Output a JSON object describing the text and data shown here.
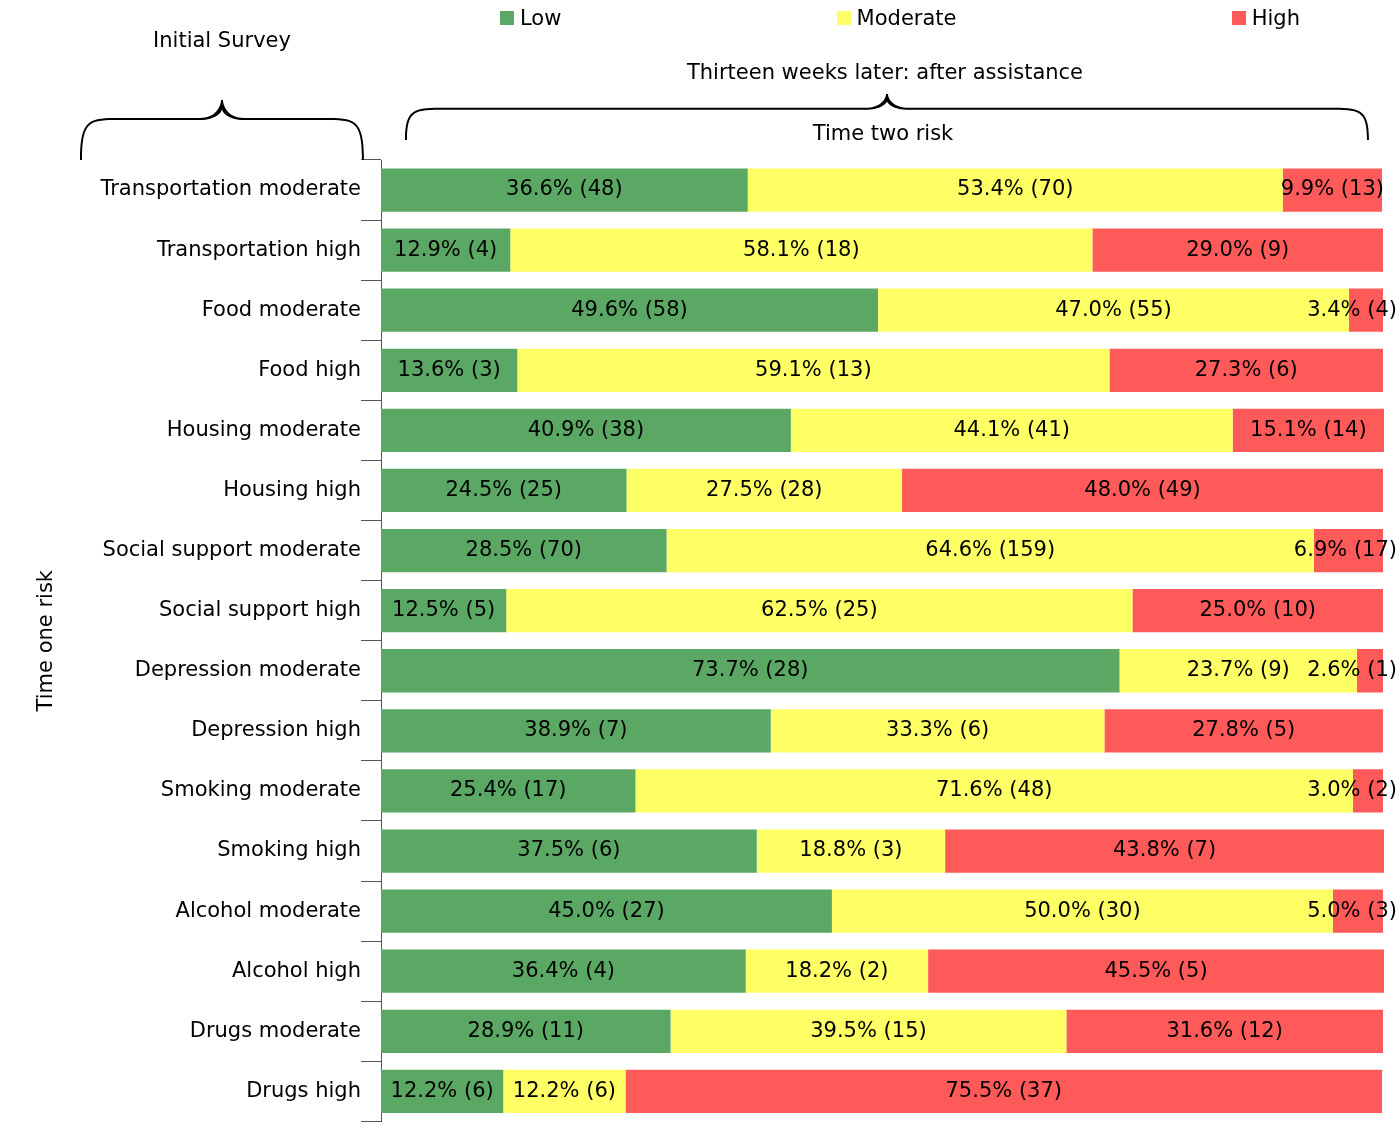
{
  "chart_data": {
    "type": "bar",
    "orientation": "horizontal",
    "stacked": true,
    "ylabel": "Time one risk",
    "annotations": [
      "Initial Survey",
      "Thirteen weeks later: after assistance",
      "Time two risk"
    ],
    "categories": [
      "Transportation moderate",
      "Transportation high",
      "Food moderate",
      "Food high",
      "Housing moderate",
      "Housing high",
      "Social support moderate",
      "Social support high",
      "Depression moderate",
      "Depression high",
      "Smoking moderate",
      "Smoking high",
      "Alcohol moderate",
      "Alcohol high",
      "Drugs moderate",
      "Drugs high"
    ],
    "series": [
      {
        "name": "Low",
        "color": "#5aa864",
        "values": [
          36.6,
          12.9,
          49.6,
          13.6,
          40.9,
          24.5,
          28.5,
          12.5,
          73.7,
          38.9,
          25.4,
          37.5,
          45.0,
          36.4,
          28.9,
          12.2
        ],
        "value_labels": [
          "36.6% (48)",
          "12.9% (4)",
          "49.6% (58)",
          "13.6% (3)",
          "40.9% (38)",
          "24.5% (25)",
          "28.5% (70)",
          "12.5% (5)",
          "73.7% (28)",
          "38.9% (7)",
          "25.4% (17)",
          "37.5% (6)",
          "45.0% (27)",
          "36.4% (4)",
          "28.9% (11)",
          "12.2% (6)"
        ]
      },
      {
        "name": "Moderate",
        "color": "#ffff66",
        "values": [
          53.4,
          58.1,
          47.0,
          59.1,
          44.1,
          27.5,
          64.6,
          62.5,
          23.7,
          33.3,
          71.6,
          18.8,
          50.0,
          18.2,
          39.5,
          12.2
        ],
        "value_labels": [
          "53.4% (70)",
          "58.1% (18)",
          "47.0% (55)",
          "59.1% (13)",
          "44.1% (41)",
          "27.5% (28)",
          "64.6% (159)",
          "62.5% (25)",
          "23.7% (9)",
          "33.3% (6)",
          "71.6% (48)",
          "18.8% (3)",
          "50.0% (30)",
          "18.2% (2)",
          "39.5% (15)",
          "12.2% (6)"
        ]
      },
      {
        "name": "High",
        "color": "#ff5a5a",
        "values": [
          9.9,
          29.0,
          3.4,
          27.3,
          15.1,
          48.0,
          6.9,
          25.0,
          2.6,
          27.8,
          3.0,
          43.8,
          5.0,
          45.5,
          31.6,
          75.5
        ],
        "value_labels": [
          "9.9% (13)",
          "29.0% (9)",
          "3.4% (4)",
          "27.3% (6)",
          "15.1% (14)",
          "48.0% (49)",
          "6.9% (17)",
          "25.0% (10)",
          "2.6% (1)",
          "27.8% (5)",
          "3.0% (2)",
          "43.8% (7)",
          "5.0% (3)",
          "45.5% (5)",
          "31.6% (12)",
          "75.5% (37)"
        ]
      }
    ],
    "legend": "top",
    "grid": false,
    "tick_labels": "y"
  }
}
